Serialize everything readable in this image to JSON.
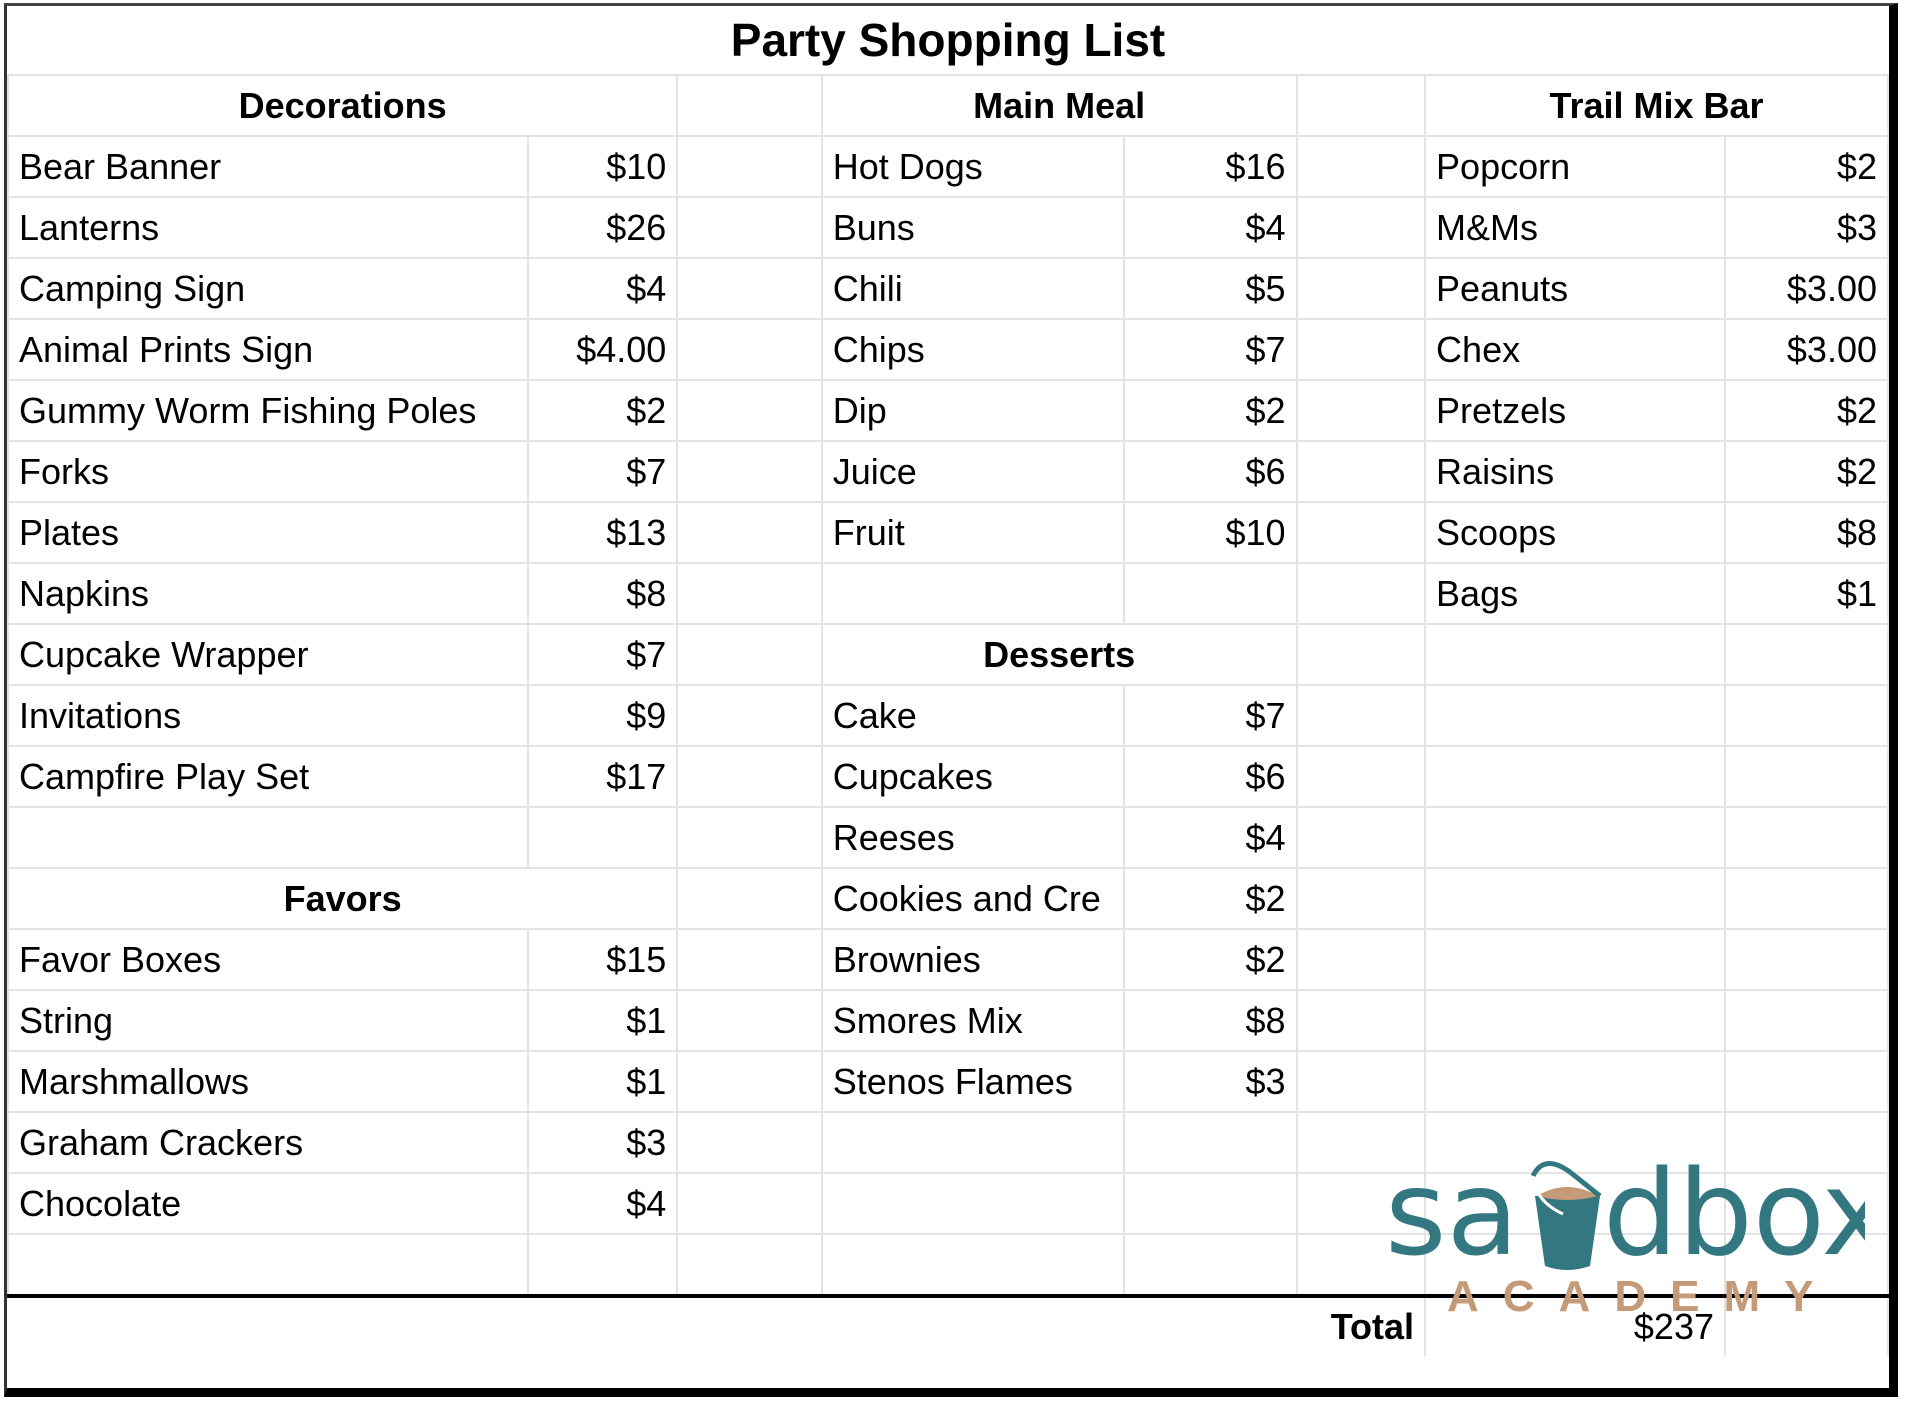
{
  "title": "Party Shopping List",
  "headers": {
    "decorations": "Decorations",
    "main_meal": "Main Meal",
    "trail_mix_bar": "Trail Mix Bar",
    "desserts": "Desserts",
    "favors": "Favors"
  },
  "rows": [
    {
      "l": [
        "Bear Banner",
        "$10"
      ],
      "m": [
        "Hot Dogs",
        "$16"
      ],
      "r": [
        "Popcorn",
        "$2"
      ]
    },
    {
      "l": [
        "Lanterns",
        "$26"
      ],
      "m": [
        "Buns",
        "$4"
      ],
      "r": [
        "M&Ms",
        "$3"
      ]
    },
    {
      "l": [
        "Camping Sign",
        "$4"
      ],
      "m": [
        "Chili",
        "$5"
      ],
      "r": [
        "Peanuts",
        "$3.00"
      ]
    },
    {
      "l": [
        "Animal Prints Sign",
        "$4.00"
      ],
      "m": [
        "Chips",
        "$7"
      ],
      "r": [
        "Chex",
        "$3.00"
      ]
    },
    {
      "l": [
        "Gummy Worm Fishing Poles",
        "$2"
      ],
      "m": [
        "Dip",
        "$2"
      ],
      "r": [
        "Pretzels",
        "$2"
      ]
    },
    {
      "l": [
        "Forks",
        "$7"
      ],
      "m": [
        "Juice",
        "$6"
      ],
      "r": [
        "Raisins",
        "$2"
      ]
    },
    {
      "l": [
        "Plates",
        "$13"
      ],
      "m": [
        "Fruit",
        "$10"
      ],
      "r": [
        "Scoops",
        "$8"
      ]
    },
    {
      "l": [
        "Napkins",
        "$8"
      ],
      "m": [
        "",
        ""
      ],
      "r": [
        "Bags",
        "$1"
      ]
    },
    {
      "l": [
        "Cupcake Wrapper",
        "$7"
      ],
      "mh": "desserts",
      "r": [
        "",
        ""
      ]
    },
    {
      "l": [
        "Invitations",
        "$9"
      ],
      "m": [
        "Cake",
        "$7"
      ],
      "r": [
        "",
        ""
      ]
    },
    {
      "l": [
        "Campfire Play Set",
        "$17"
      ],
      "m": [
        "Cupcakes",
        "$6"
      ],
      "r": [
        "",
        ""
      ]
    },
    {
      "l": [
        "",
        ""
      ],
      "m": [
        "Reeses",
        "$4"
      ],
      "r": [
        "",
        ""
      ]
    },
    {
      "lh": "favors",
      "m": [
        "Cookies and Cre",
        "$2"
      ],
      "r": [
        "",
        ""
      ]
    },
    {
      "l": [
        "Favor Boxes",
        "$15"
      ],
      "m": [
        "Brownies",
        "$2"
      ],
      "r": [
        "",
        ""
      ]
    },
    {
      "l": [
        "String",
        "$1"
      ],
      "m": [
        "Smores Mix",
        "$8"
      ],
      "r": [
        "",
        ""
      ]
    },
    {
      "l": [
        "Marshmallows",
        "$1"
      ],
      "m": [
        "Stenos Flames",
        "$3"
      ],
      "r": [
        "",
        ""
      ]
    },
    {
      "l": [
        "Graham Crackers",
        "$3"
      ],
      "m": [
        "",
        ""
      ],
      "r": [
        "",
        ""
      ]
    },
    {
      "l": [
        "Chocolate",
        "$4"
      ],
      "m": [
        "",
        ""
      ],
      "r": [
        "",
        ""
      ]
    },
    {
      "l": [
        "",
        ""
      ],
      "m": [
        "",
        ""
      ],
      "r": [
        "",
        ""
      ]
    }
  ],
  "total": {
    "label": "Total",
    "value": "$237"
  },
  "logo": {
    "text": "sandbox",
    "subtext": "ACADEMY",
    "primary_color": "#337780",
    "accent_color": "#c49a78"
  }
}
